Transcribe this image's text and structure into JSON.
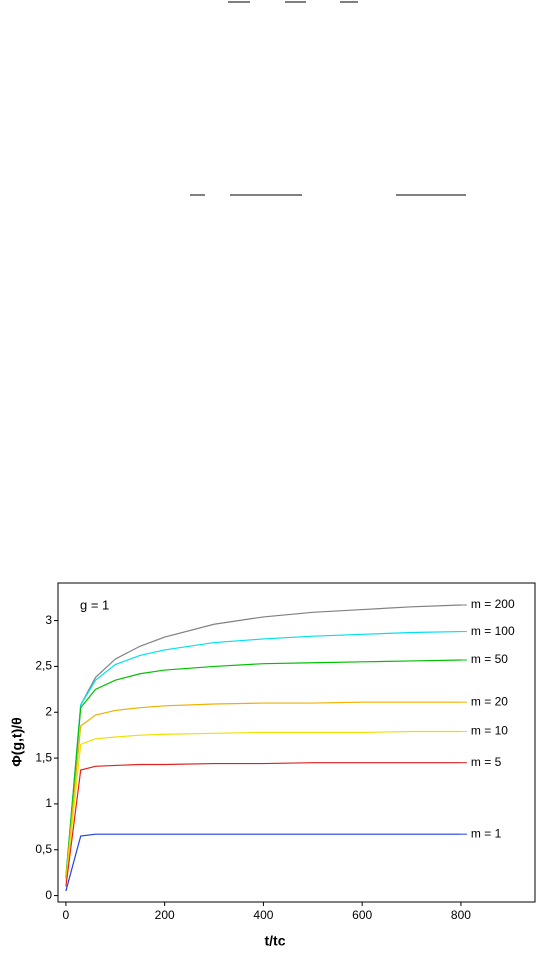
{
  "chart_data": {
    "type": "line",
    "annotation": "g = 1",
    "x_label": "t/tc",
    "y_label": "Φ(g,t)/θ",
    "x": [
      0,
      30,
      60,
      100,
      150,
      200,
      300,
      400,
      500,
      600,
      700,
      800
    ],
    "series": [
      {
        "name": "m = 200",
        "color": "#808080",
        "values": [
          0.2,
          2.08,
          2.38,
          2.58,
          2.72,
          2.82,
          2.96,
          3.04,
          3.09,
          3.12,
          3.15,
          3.17
        ]
      },
      {
        "name": "m = 100",
        "color": "#00e0f0",
        "values": [
          0.2,
          2.08,
          2.35,
          2.52,
          2.62,
          2.68,
          2.76,
          2.8,
          2.83,
          2.85,
          2.87,
          2.88
        ]
      },
      {
        "name": "m = 50",
        "color": "#00c000",
        "values": [
          0.2,
          2.05,
          2.25,
          2.35,
          2.42,
          2.46,
          2.5,
          2.53,
          2.54,
          2.55,
          2.56,
          2.57
        ]
      },
      {
        "name": "m = 20",
        "color": "#f0b000",
        "values": [
          0.18,
          1.85,
          1.97,
          2.02,
          2.05,
          2.07,
          2.09,
          2.1,
          2.1,
          2.11,
          2.11,
          2.11
        ]
      },
      {
        "name": "m = 10",
        "color": "#f0e000",
        "values": [
          0.15,
          1.65,
          1.71,
          1.73,
          1.75,
          1.76,
          1.77,
          1.78,
          1.78,
          1.78,
          1.79,
          1.79
        ]
      },
      {
        "name": "m = 5",
        "color": "#e02020",
        "values": [
          0.1,
          1.37,
          1.41,
          1.42,
          1.43,
          1.43,
          1.44,
          1.44,
          1.45,
          1.45,
          1.45,
          1.45
        ]
      },
      {
        "name": "m = 1",
        "color": "#2040e0",
        "values": [
          0.05,
          0.65,
          0.67,
          0.67,
          0.67,
          0.67,
          0.67,
          0.67,
          0.67,
          0.67,
          0.67,
          0.67
        ]
      }
    ],
    "xlim": [
      -16,
      950
    ],
    "ylim": [
      -0.07,
      3.41
    ],
    "xticks": [
      0,
      200,
      400,
      600,
      800
    ],
    "yticks": [
      0,
      {
        "value": 0.5,
        "label": "0,5"
      },
      1,
      {
        "value": 1.5,
        "label": "1,5"
      },
      2,
      {
        "value": 2.5,
        "label": "2,5"
      },
      3
    ],
    "grid": false
  }
}
